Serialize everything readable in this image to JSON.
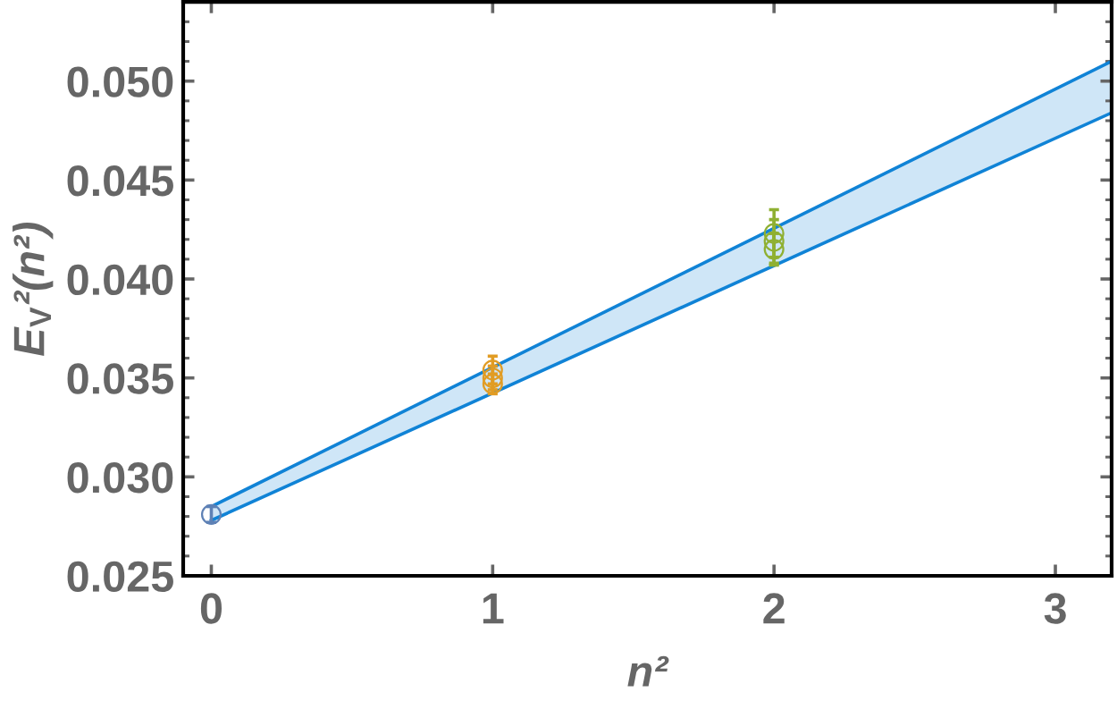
{
  "chart_data": {
    "type": "scatter",
    "xlabel": "n²",
    "ylabel": "E$_{V}$²(n²)",
    "xlim": [
      -0.1,
      3.2
    ],
    "ylim": [
      0.025,
      0.054
    ],
    "xticks": [
      0,
      1,
      2,
      3
    ],
    "yticks": [
      {
        "value": 0.025,
        "label": "0.025"
      },
      {
        "value": 0.026,
        "label": null
      },
      {
        "value": 0.027,
        "label": null
      },
      {
        "value": 0.028,
        "label": null
      },
      {
        "value": 0.029,
        "label": null
      },
      {
        "value": 0.03,
        "label": "0.030"
      },
      {
        "value": 0.031,
        "label": null
      },
      {
        "value": 0.032,
        "label": null
      },
      {
        "value": 0.033,
        "label": null
      },
      {
        "value": 0.034,
        "label": null
      },
      {
        "value": 0.035,
        "label": "0.035"
      },
      {
        "value": 0.036,
        "label": null
      },
      {
        "value": 0.037,
        "label": null
      },
      {
        "value": 0.038,
        "label": null
      },
      {
        "value": 0.039,
        "label": null
      },
      {
        "value": 0.04,
        "label": "0.040"
      },
      {
        "value": 0.041,
        "label": null
      },
      {
        "value": 0.042,
        "label": null
      },
      {
        "value": 0.043,
        "label": null
      },
      {
        "value": 0.044,
        "label": null
      },
      {
        "value": 0.045,
        "label": "0.045"
      },
      {
        "value": 0.046,
        "label": null
      },
      {
        "value": 0.047,
        "label": null
      },
      {
        "value": 0.048,
        "label": null
      },
      {
        "value": 0.049,
        "label": null
      },
      {
        "value": 0.05,
        "label": "0.050"
      },
      {
        "value": 0.051,
        "label": null
      },
      {
        "value": 0.052,
        "label": null
      },
      {
        "value": 0.053,
        "label": null
      }
    ],
    "marker": "circle",
    "grid": false,
    "series": [
      {
        "type": "line",
        "marker": "none",
        "x": [
          0,
          3.2
        ],
        "values": [
          0.0285,
          0.051
        ],
        "color": "#1083d6"
      },
      {
        "type": "line",
        "marker": "none",
        "x": [
          0,
          3.2
        ],
        "values": [
          0.0278,
          0.0484
        ],
        "lower": [
          0.0278,
          0.0484
        ],
        "upper": [
          0.0285,
          0.051
        ],
        "color": "#1083d6"
      },
      {
        "x": [
          0
        ],
        "values": [
          0.0281
        ],
        "errors": [
          0.0004
        ],
        "color": "#5e81b5"
      },
      {
        "x": [
          1,
          1,
          1
        ],
        "values": [
          0.0354,
          0.035,
          0.0347
        ],
        "errors": [
          0.0007,
          0.0006,
          0.0005
        ],
        "color": "#e19c24"
      },
      {
        "x": [
          2,
          2,
          2
        ],
        "values": [
          0.0423,
          0.0419,
          0.0415
        ],
        "errors": [
          0.0012,
          0.0011,
          0.0008
        ],
        "color": "#8fb032"
      }
    ]
  }
}
